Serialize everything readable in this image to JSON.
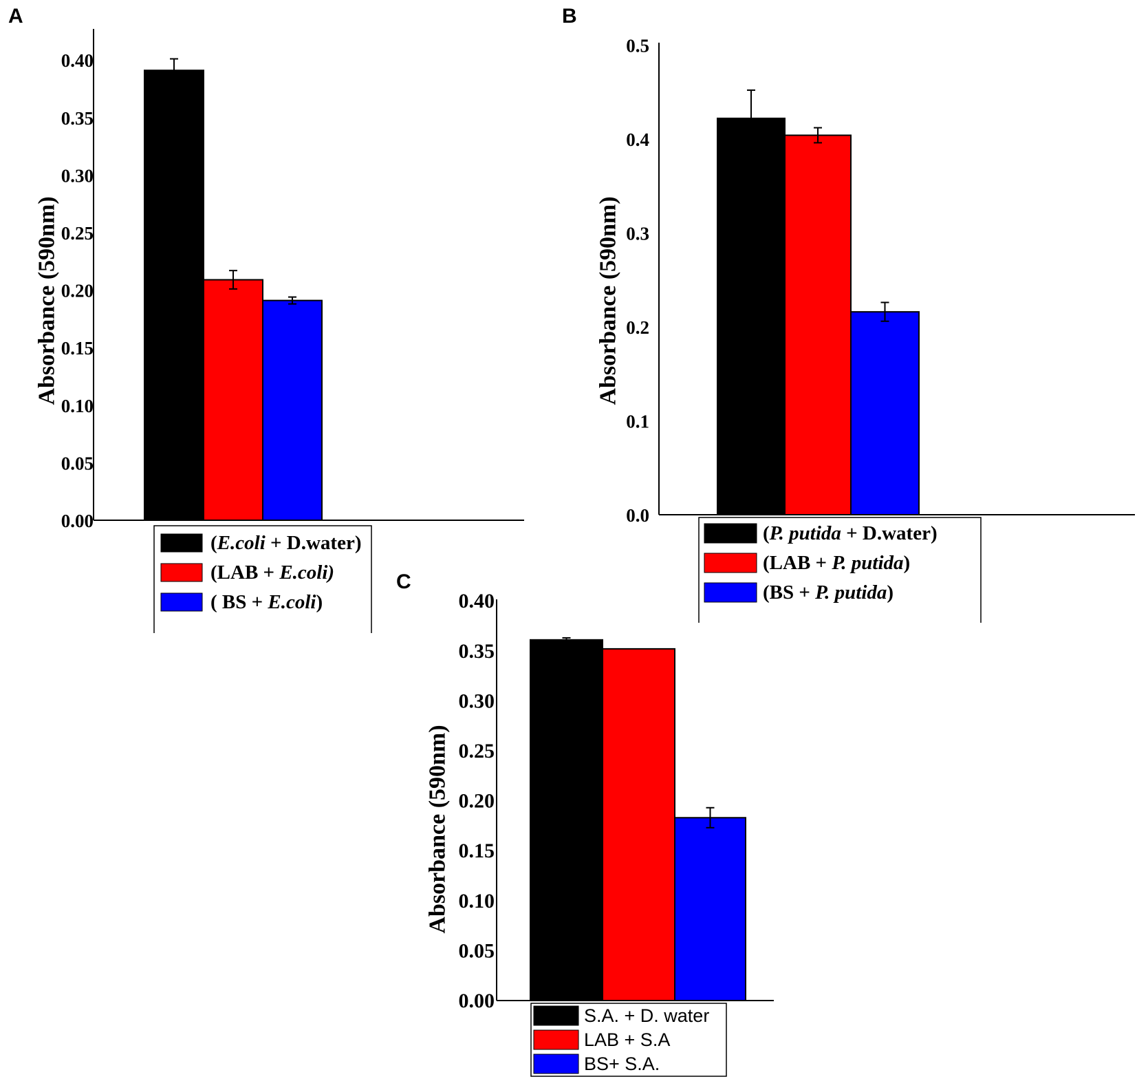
{
  "chart_data": [
    {
      "panel": "A",
      "type": "bar",
      "title": "",
      "xlabel": "",
      "ylabel": "Absorbance (590nm)",
      "ylim": [
        0,
        0.41
      ],
      "yticks": [
        "0.00",
        "0.05",
        "0.10",
        "0.15",
        "0.20",
        "0.25",
        "0.30",
        "0.35",
        "0.40"
      ],
      "grid": false,
      "legend_position": "bottom-left",
      "legend_style": "serif",
      "categories": [
        "(E.coli + D.water)",
        "(LAB + E.coli)",
        "( BS + E.coli)"
      ],
      "legend_entries": [
        {
          "color": "#000000",
          "parts": [
            {
              "t": "(",
              "i": false
            },
            {
              "t": "E.coli",
              "i": true
            },
            {
              "t": " + D.water)",
              "i": false
            }
          ]
        },
        {
          "color": "#ff0000",
          "parts": [
            {
              "t": "(LAB + ",
              "i": false
            },
            {
              "t": "E.coli)",
              "i": true
            }
          ]
        },
        {
          "color": "#0000ff",
          "parts": [
            {
              "t": "( BS + ",
              "i": false
            },
            {
              "t": "E.coli",
              "i": true
            },
            {
              "t": ")",
              "i": false
            }
          ]
        }
      ],
      "series": [
        {
          "name": "(E.coli + D.water)",
          "color": "#000000",
          "value": 0.391,
          "error": 0.01
        },
        {
          "name": "(LAB + E.coli)",
          "color": "#ff0000",
          "value": 0.209,
          "error": 0.008
        },
        {
          "name": "( BS + E.coli)",
          "color": "#0000ff",
          "value": 0.191,
          "error": 0.003
        }
      ]
    },
    {
      "panel": "B",
      "type": "bar",
      "title": "",
      "xlabel": "",
      "ylabel": "Absorbance (590nm)",
      "ylim": [
        0,
        0.5
      ],
      "yticks": [
        "0.0",
        "0.1",
        "0.2",
        "0.3",
        "0.4",
        "0.5"
      ],
      "grid": false,
      "legend_position": "bottom-left",
      "legend_style": "serif",
      "categories": [
        "(P. putida + D.water)",
        "(LAB + P. putida)",
        "(BS + P. putida)"
      ],
      "legend_entries": [
        {
          "color": "#000000",
          "parts": [
            {
              "t": "(",
              "i": false
            },
            {
              "t": "P. putida",
              "i": true
            },
            {
              "t": " + D.water)",
              "i": false
            }
          ]
        },
        {
          "color": "#ff0000",
          "parts": [
            {
              "t": "(LAB + ",
              "i": false
            },
            {
              "t": "P. putida",
              "i": true
            },
            {
              "t": ")",
              "i": false
            }
          ]
        },
        {
          "color": "#0000ff",
          "parts": [
            {
              "t": "(BS + ",
              "i": false
            },
            {
              "t": "P. putida",
              "i": true
            },
            {
              "t": ")",
              "i": false
            }
          ]
        }
      ],
      "series": [
        {
          "name": "(P. putida + D.water)",
          "color": "#000000",
          "value": 0.422,
          "error": 0.03
        },
        {
          "name": "(LAB + P. putida)",
          "color": "#ff0000",
          "value": 0.404,
          "error": 0.008
        },
        {
          "name": "(BS + P. putida)",
          "color": "#0000ff",
          "value": 0.216,
          "error": 0.01
        }
      ]
    },
    {
      "panel": "C",
      "type": "bar",
      "title": "",
      "xlabel": "",
      "ylabel": "Absorbance (590nm)",
      "ylim": [
        0,
        0.4
      ],
      "yticks": [
        "0.00",
        "0.05",
        "0.10",
        "0.15",
        "0.20",
        "0.25",
        "0.30",
        "0.35",
        "0.40"
      ],
      "grid": false,
      "legend_position": "bottom-left",
      "legend_style": "sans",
      "categories": [
        "S.A. + D. water",
        "LAB + S.A",
        "BS+ S.A."
      ],
      "legend_entries": [
        {
          "color": "#000000",
          "parts": [
            {
              "t": "S.A. + D. water",
              "i": false
            }
          ]
        },
        {
          "color": "#ff0000",
          "parts": [
            {
              "t": "LAB + S.A",
              "i": false
            }
          ]
        },
        {
          "color": "#0000ff",
          "parts": [
            {
              "t": "BS+ S.A.",
              "i": false
            }
          ]
        }
      ],
      "series": [
        {
          "name": "S.A. + D. water",
          "color": "#000000",
          "value": 0.361,
          "error": 0.002
        },
        {
          "name": "LAB + S.A",
          "color": "#ff0000",
          "value": 0.352,
          "error": 0
        },
        {
          "name": "BS+ S.A.",
          "color": "#0000ff",
          "value": 0.183,
          "error": 0.01
        }
      ]
    }
  ]
}
